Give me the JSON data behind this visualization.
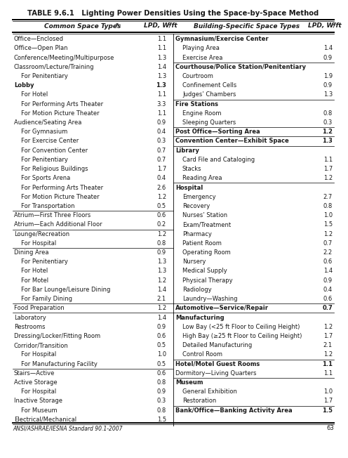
{
  "title_bold": "TABLE 9.6.1",
  "title_rest": "   Lighting Power Densities Using the Space-by-Space Method",
  "header_left1": "Common Space Types",
  "header_left1_super": "a",
  "header_left2": "LPD, W/ft",
  "header_left2_super": "2",
  "header_right1": "Building-Specific Space Types",
  "header_right2": "LPD, W/ft",
  "header_right2_super": "2",
  "left_rows": [
    [
      "Office—Enclosed",
      "1.1",
      false,
      false
    ],
    [
      "Office—Open Plan",
      "1.1",
      false,
      false
    ],
    [
      "Conference/Meeting/Multipurpose",
      "1.3",
      false,
      false
    ],
    [
      "Classroom/Lecture/Training",
      "1.4",
      false,
      false
    ],
    [
      "  For Penitentiary",
      "1.3",
      false,
      false
    ],
    [
      "Lobby",
      "1.3",
      false,
      true
    ],
    [
      "  For Hotel",
      "1.1",
      false,
      false
    ],
    [
      "  For Performing Arts Theater",
      "3.3",
      false,
      false
    ],
    [
      "  For Motion Picture Theater",
      "1.1",
      false,
      false
    ],
    [
      "Audience/Seating Area",
      "0.9",
      false,
      false
    ],
    [
      "  For Gymnasium",
      "0.4",
      false,
      false
    ],
    [
      "  For Exercise Center",
      "0.3",
      false,
      false
    ],
    [
      "  For Convention Center",
      "0.7",
      false,
      false
    ],
    [
      "  For Penitentiary",
      "0.7",
      false,
      false
    ],
    [
      "  For Religious Buildings",
      "1.7",
      false,
      false
    ],
    [
      "  For Sports Arena",
      "0.4",
      false,
      false
    ],
    [
      "  For Performing Arts Theater",
      "2.6",
      false,
      false
    ],
    [
      "  For Motion Picture Theater",
      "1.2",
      false,
      false
    ],
    [
      "  For Transportation",
      "0.5",
      false,
      false
    ],
    [
      "Atrium—First Three Floors",
      "0.6",
      true,
      false
    ],
    [
      "Atrium—Each Additional Floor",
      "0.2",
      false,
      false
    ],
    [
      "Lounge/Recreation",
      "1.2",
      true,
      false
    ],
    [
      "  For Hospital",
      "0.8",
      false,
      false
    ],
    [
      "Dining Area",
      "0.9",
      true,
      false
    ],
    [
      "  For Penitentiary",
      "1.3",
      false,
      false
    ],
    [
      "  For Hotel",
      "1.3",
      false,
      false
    ],
    [
      "  For Motel",
      "1.2",
      false,
      false
    ],
    [
      "  For Bar Lounge/Leisure Dining",
      "1.4",
      false,
      false
    ],
    [
      "  For Family Dining",
      "2.1",
      false,
      false
    ],
    [
      "Food Preparation",
      "1.2",
      true,
      false
    ],
    [
      "Laboratory",
      "1.4",
      true,
      false
    ],
    [
      "Restrooms",
      "0.9",
      false,
      false
    ],
    [
      "Dressing/Locker/Fitting Room",
      "0.6",
      false,
      false
    ],
    [
      "Corridor/Transition",
      "0.5",
      false,
      false
    ],
    [
      "  For Hospital",
      "1.0",
      false,
      false
    ],
    [
      "  For Manufacturing Facility",
      "0.5",
      false,
      false
    ],
    [
      "Stairs—Active",
      "0.6",
      true,
      false
    ],
    [
      "Active Storage",
      "0.8",
      false,
      false
    ],
    [
      "  For Hospital",
      "0.9",
      false,
      false
    ],
    [
      "Inactive Storage",
      "0.3",
      false,
      false
    ],
    [
      "  For Museum",
      "0.8",
      false,
      false
    ],
    [
      "Electrical/Mechanical",
      "1.5",
      false,
      false
    ]
  ],
  "right_rows": [
    [
      "Gymnasium/Exercise Center",
      "",
      true,
      false
    ],
    [
      "  Playing Area",
      "1.4",
      false,
      false
    ],
    [
      "  Exercise Area",
      "0.9",
      false,
      false
    ],
    [
      "Courthouse/Police Station/Penitentiary",
      "",
      true,
      false
    ],
    [
      "  Courtroom",
      "1.9",
      false,
      false
    ],
    [
      "  Confinement Cells",
      "0.9",
      false,
      false
    ],
    [
      "  Judges’ Chambers",
      "1.3",
      false,
      false
    ],
    [
      "Fire Stations",
      "",
      true,
      false
    ],
    [
      "  Engine Room",
      "0.8",
      false,
      false
    ],
    [
      "  Sleeping Quarters",
      "0.3",
      false,
      false
    ],
    [
      "Post Office—Sorting Area",
      "1.2",
      true,
      false
    ],
    [
      "Convention Center—Exhibit Space",
      "1.3",
      true,
      false
    ],
    [
      "Library",
      "",
      true,
      false
    ],
    [
      "  Card File and Cataloging",
      "1.1",
      false,
      false
    ],
    [
      "  Stacks",
      "1.7",
      false,
      false
    ],
    [
      "  Reading Area",
      "1.2",
      false,
      false
    ],
    [
      "Hospital",
      "",
      true,
      false
    ],
    [
      "  Emergency",
      "2.7",
      false,
      false
    ],
    [
      "  Recovery",
      "0.8",
      false,
      false
    ],
    [
      "  Nurses’ Station",
      "1.0",
      false,
      false
    ],
    [
      "  Exam/Treatment",
      "1.5",
      false,
      false
    ],
    [
      "  Pharmacy",
      "1.2",
      false,
      false
    ],
    [
      "  Patient Room",
      "0.7",
      false,
      false
    ],
    [
      "  Operating Room",
      "2.2",
      false,
      false
    ],
    [
      "  Nursery",
      "0.6",
      false,
      false
    ],
    [
      "  Medical Supply",
      "1.4",
      false,
      false
    ],
    [
      "  Physical Therapy",
      "0.9",
      false,
      false
    ],
    [
      "  Radiology",
      "0.4",
      false,
      false
    ],
    [
      "  Laundry—Washing",
      "0.6",
      false,
      false
    ],
    [
      "Automotive—Service/Repair",
      "0.7",
      true,
      false
    ],
    [
      "Manufacturing",
      "",
      true,
      false
    ],
    [
      "  Low Bay (<25 ft Floor to Ceiling Height)",
      "1.2",
      false,
      false
    ],
    [
      "  High Bay (≥25 ft Floor to Ceiling Height)",
      "1.7",
      false,
      false
    ],
    [
      "  Detailed Manufacturing",
      "2.1",
      false,
      false
    ],
    [
      "  Control Room",
      "1.2",
      false,
      false
    ],
    [
      "Hotel/Motel Guest Rooms",
      "1.1",
      true,
      false
    ],
    [
      "Dormitory—Living Quarters",
      "1.1",
      false,
      false
    ],
    [
      "Museum",
      "",
      true,
      false
    ],
    [
      "  General Exhibition",
      "1.0",
      false,
      false
    ],
    [
      "  Restoration",
      "1.7",
      false,
      false
    ],
    [
      "Bank/Office—Banking Activity Area",
      "1.5",
      true,
      false
    ],
    [
      "",
      "",
      false,
      false
    ]
  ],
  "footer": "ANSI/ASHRAE/IESNA Standard 90.1-2007",
  "page_number": "63",
  "bg_color": "#ffffff",
  "text_color": "#1a1a1a"
}
